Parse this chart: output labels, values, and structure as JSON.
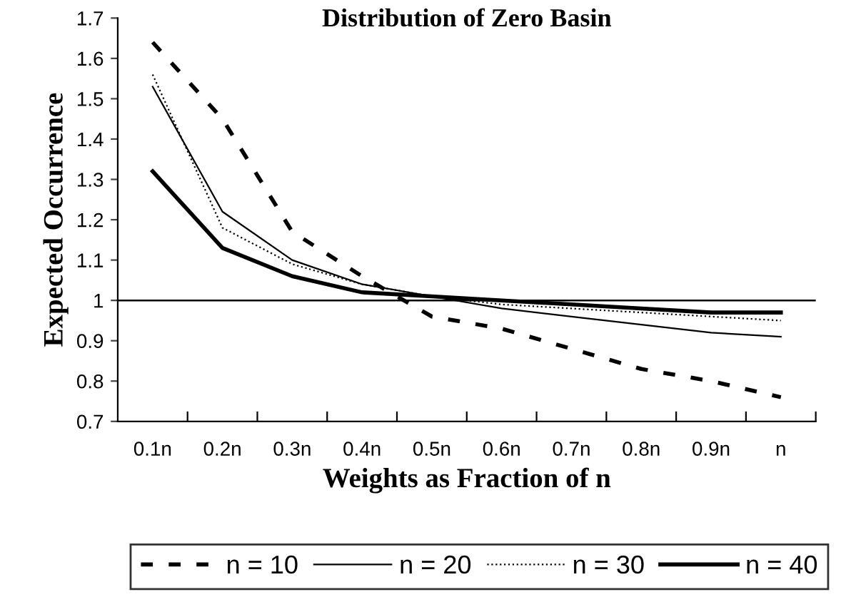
{
  "chart_data": {
    "type": "line",
    "title": "Distribution of Zero Basin",
    "xlabel": "Weights as Fraction of n",
    "ylabel": "Expected Occurrence",
    "categories": [
      "0.1n",
      "0.2n",
      "0.3n",
      "0.4n",
      "0.5n",
      "0.6n",
      "0.7n",
      "0.8n",
      "0.9n",
      "n"
    ],
    "series": [
      {
        "name": "n = 10",
        "color": "#000000",
        "line_style": "dashed",
        "values": [
          1.64,
          1.45,
          1.17,
          1.06,
          0.96,
          0.93,
          0.88,
          0.83,
          0.8,
          0.76
        ]
      },
      {
        "name": "n = 20",
        "color": "#000000",
        "line_style": "solid",
        "values": [
          1.53,
          1.22,
          1.1,
          1.04,
          1.01,
          0.98,
          0.96,
          0.94,
          0.92,
          0.91
        ]
      },
      {
        "name": "n = 30",
        "color": "#000000",
        "line_style": "dotted",
        "values": [
          1.56,
          1.18,
          1.09,
          1.04,
          1.01,
          0.99,
          0.98,
          0.97,
          0.96,
          0.95
        ]
      },
      {
        "name": "n = 40",
        "color": "#000000",
        "line_style": "solid",
        "values": [
          1.32,
          1.13,
          1.06,
          1.02,
          1.01,
          1.0,
          0.99,
          0.98,
          0.97,
          0.97
        ]
      }
    ],
    "ylim": [
      0.7,
      1.7
    ],
    "yticks": [
      0.7,
      0.8,
      0.9,
      1,
      1.1,
      1.2,
      1.3,
      1.4,
      1.5,
      1.6,
      1.7
    ],
    "ref_lines": [
      {
        "axis": "y",
        "value": 1,
        "color": "#000000"
      }
    ],
    "grid": false,
    "legend": "bottom",
    "marker": "none"
  }
}
